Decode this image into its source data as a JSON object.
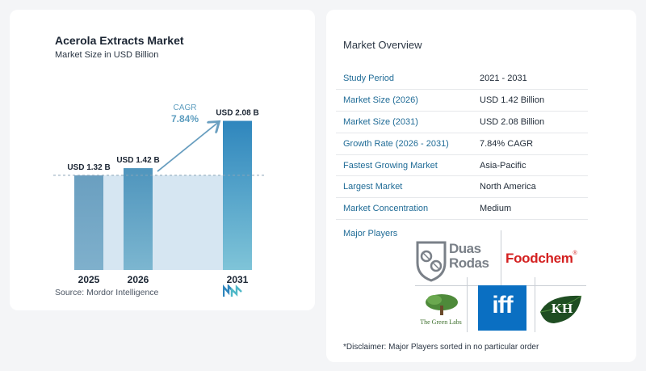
{
  "chart_data": {
    "type": "bar",
    "title": "Acerola Extracts Market",
    "subtitle": "Market Size in USD Billion",
    "categories": [
      "2025",
      "2026",
      "2031"
    ],
    "values": [
      1.32,
      1.42,
      2.08
    ],
    "value_labels": [
      "USD 1.32 B",
      "USD 1.42 B",
      "USD 2.08 B"
    ],
    "ylim": [
      0,
      2.3
    ],
    "cagr_label": "CAGR",
    "cagr_value": "7.84%",
    "colors": {
      "bar_dark": "#6a9fc0",
      "bar_mid": "#5d9dbf",
      "bar_light": "#3e86b5",
      "shade": "#d6e6f2",
      "arrow": "#6a9fc0",
      "cagr": "#5d9dbf"
    }
  },
  "source": "Source:  Mordor Intelligence",
  "overview": {
    "title": "Market Overview",
    "rows": [
      {
        "key": "Study Period",
        "value": "2021 - 2031"
      },
      {
        "key": "Market Size (2026)",
        "value": "USD 1.42 Billion"
      },
      {
        "key": "Market Size (2031)",
        "value": "USD 2.08 Billion"
      },
      {
        "key": "Growth Rate (2026 - 2031)",
        "value": "7.84% CAGR"
      },
      {
        "key": "Fastest Growing Market",
        "value": "Asia-Pacific"
      },
      {
        "key": "Largest Market",
        "value": "North America"
      },
      {
        "key": "Market Concentration",
        "value": "Medium"
      }
    ]
  },
  "major_players": {
    "title": "Major Players",
    "logos": {
      "duas_rodas": [
        "Duas",
        "Rodas"
      ],
      "foodchem": "Foodchem",
      "foodchem_mark": "®",
      "green_labs": "The Green Labs",
      "iff": "iff",
      "kh": "KH"
    }
  },
  "disclaimer": "*Disclaimer: Major Players sorted in no particular order"
}
